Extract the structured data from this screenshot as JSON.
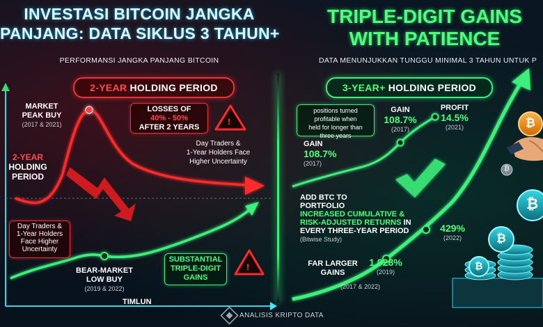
{
  "left": {
    "title_line1": "INVESTASI BITCOIN JANGKA",
    "title_line2": "PANJANG: DATA SIKLUS 3 TAHUN+",
    "subtitle": "PERFORMANSI JANGKA PANJANG BITCOIN",
    "pill_number": "2-YEAR",
    "pill_rest": " HOLDING PERIOD",
    "market_peak_line1": "MARKET",
    "market_peak_line2": "PEAK BUY",
    "market_peak_years": "(2017 & 2021)",
    "losses_line1": "LOSSES OF",
    "losses_line2": "40% - 50%",
    "losses_line3": "AFTER 2 YEARS",
    "two_year_line1": "2-YEAR",
    "two_year_line2": "HOLDING",
    "two_year_line3": "PERIOD",
    "traders_right_line1": "Day Traders &",
    "traders_right_line2": "1-Year Holders Face",
    "traders_right_line3": "Higher Uncertainty",
    "traders_left_line1": "Day Traders &",
    "traders_left_line2": "1-Year Holders",
    "traders_left_line3": "Face Higher",
    "traders_left_line4": "Uncertainty",
    "bear_line1": "BEAR-MARKET",
    "bear_line2": "LOW BUY",
    "bear_years": "(2019 & 2022)",
    "substantial_line1": "SUBSTANTIAL",
    "substantial_line2": "TRIPLE-DIGIT",
    "substantial_line3": "GAINS",
    "x_axis": "TIMLUN",
    "warning_glyph": "!"
  },
  "right": {
    "title_line1": "TRIPLE-DIGIT GAINS",
    "title_line2": "WITH PATIENCE",
    "subtitle": "DATA MENUNJUKKAN TUNGGU MINIMAL 3 TAHUN UNTUK P",
    "pill_number": "3-YEAR+",
    "pill_rest": " HOLDING PERIOD",
    "positions_line1": "positions turned",
    "positions_line2": "profitable when",
    "positions_line3": "held for longer than",
    "positions_line4": "three years",
    "gain_top_label": "GAIN",
    "gain_top_value": "108.7%",
    "gain_top_year": "(2017)",
    "profit_label": "PROFIT",
    "profit_value": "14.5%",
    "profit_year": "(2021)",
    "gain_left_label": "GAIN",
    "gain_left_value": "108.7%",
    "gain_left_year": "(2017)",
    "add_line1": "ADD BTC TO",
    "add_line2": "PORTFOLIO",
    "add_line3": "INCREASED CUMULATIVE &",
    "add_line4": "RISK-ADJUSTED RETURNS",
    "add_line4_tail": " IN",
    "add_line5": "EVERY THREE-YEAR PERIOD",
    "add_source": "(Bitwise Study)",
    "gain429_value": "429%",
    "gain429_year": "(2022)",
    "far_line1": "FAR LARGER",
    "far_line2": "GAINS",
    "gain1028_value": "1,028%",
    "gain1028_year": "(2019)",
    "far_years": "(2017 & 2022)",
    "coin_glyph": "₿"
  },
  "footer": {
    "brand": "ANALISIS KRIPTO DATA"
  },
  "colors": {
    "red": "#e8353c",
    "green": "#3ef07c",
    "bitcoin_orange": "#f7931a",
    "bitcoin_teal": "#19b6c9"
  }
}
